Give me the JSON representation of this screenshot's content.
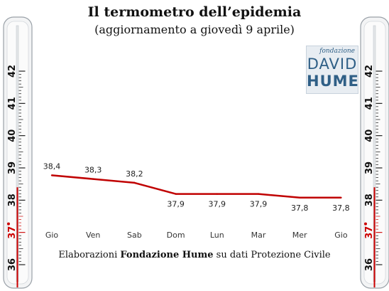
{
  "title": "Il termometro dell’epidemia",
  "subtitle": "(aggiornamento a giovedì 9 aprile)",
  "footer": {
    "prefix": "Elaborazioni ",
    "bold": "Fondazione Hume",
    "suffix": " su dati Protezione Civile"
  },
  "logo": {
    "small": "fondazione",
    "line1": "DAVID",
    "line2": "HUME"
  },
  "thermometer": {
    "scale_min": 36,
    "scale_max": 42,
    "major_labels": [
      "36",
      "37",
      "38",
      "39",
      "40",
      "41",
      "42"
    ],
    "highlight_label": "37",
    "mercury_to": 38.4,
    "color_normal": "#111111",
    "color_highlight": "#cc0000",
    "mercury_color": "#cc0000"
  },
  "chart_data": {
    "type": "line",
    "categories": [
      "Gio",
      "Ven",
      "Sab",
      "Dom",
      "Lun",
      "Mar",
      "Mer",
      "Gio"
    ],
    "values": [
      38.4,
      38.3,
      38.2,
      37.9,
      37.9,
      37.9,
      37.8,
      37.8
    ],
    "value_labels": [
      "38,4",
      "38,3",
      "38,2",
      "37,9",
      "37,9",
      "37,9",
      "37,8",
      "37,8"
    ],
    "ylim": [
      36,
      42
    ],
    "line_color": "#c00000",
    "grid": false
  }
}
